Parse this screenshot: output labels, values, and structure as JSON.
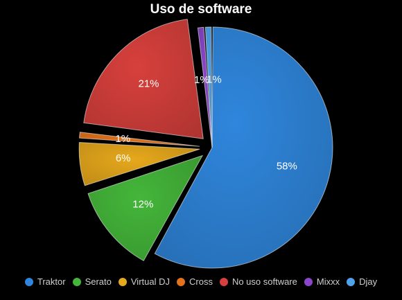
{
  "chart_data": {
    "type": "pie",
    "title": "Uso de software",
    "legend_position": "bottom",
    "slices": [
      {
        "label": "Traktor",
        "value": 58,
        "display": "58%",
        "color": "#2f86dc",
        "exploded": false
      },
      {
        "label": "Serato",
        "value": 12,
        "display": "12%",
        "color": "#44b63a",
        "exploded": true
      },
      {
        "label": "Virtual DJ",
        "value": 6,
        "display": "6%",
        "color": "#e6a81c",
        "exploded": true
      },
      {
        "label": "Cross",
        "value": 1,
        "display": "1%",
        "color": "#e2721b",
        "exploded": true
      },
      {
        "label": "No uso software",
        "value": 21,
        "display": "21%",
        "color": "#d7403c",
        "exploded": true
      },
      {
        "label": "Mixxx",
        "value": 1,
        "display": "1%",
        "color": "#8a46c8",
        "exploded": false
      },
      {
        "label": "Djay",
        "value": 1,
        "display": "1%",
        "color": "#4fa3ea",
        "exploded": false
      }
    ]
  }
}
